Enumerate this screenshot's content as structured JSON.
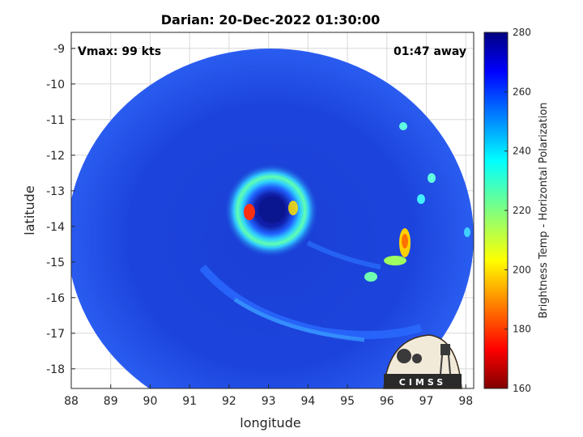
{
  "chart_data": {
    "type": "heatmap",
    "title": "Darian: 20-Dec-2022 01:30:00",
    "xlabel": "longitude",
    "ylabel": "latitude",
    "xlim": [
      88,
      98.2
    ],
    "ylim": [
      -18.55,
      -8.55
    ],
    "xticks": [
      "88",
      "89",
      "90",
      "91",
      "92",
      "93",
      "94",
      "95",
      "96",
      "97",
      "98"
    ],
    "yticks": [
      "-9",
      "-10",
      "-11",
      "-12",
      "-13",
      "-14",
      "-15",
      "-16",
      "-17",
      "-18"
    ],
    "grid": true,
    "annotations": {
      "vmax": "Vmax: 99 kts",
      "time_away": "01:47 away"
    },
    "colorbar": {
      "label": "Brightness Temp - Horizontal Polarization",
      "range": [
        160,
        280
      ],
      "ticks": [
        "160",
        "180",
        "200",
        "220",
        "240",
        "260",
        "280"
      ]
    },
    "storm_center": {
      "lon": 93.1,
      "lat": -13.65
    },
    "logo_text": "CIMSS"
  }
}
